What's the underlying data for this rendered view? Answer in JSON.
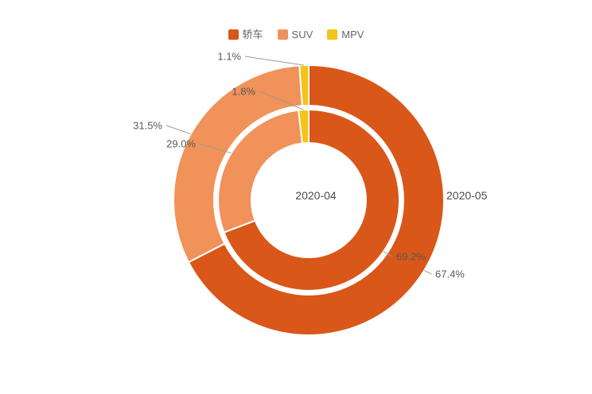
{
  "chart_data": {
    "type": "pie",
    "subtype": "nested-donut",
    "legend": [
      "轿车",
      "SUV",
      "MPV"
    ],
    "legend_position": "top",
    "colors": [
      "#D95718",
      "#F0925A",
      "#F4C416"
    ],
    "background": "#FFFFFF",
    "unit": "%",
    "series": [
      {
        "name": "2020-04",
        "ring": "inner",
        "values": [
          69.2,
          29.0,
          1.8
        ],
        "labels": [
          "69.2%",
          "29.0%",
          "1.8%"
        ]
      },
      {
        "name": "2020-05",
        "ring": "outer",
        "values": [
          67.4,
          31.5,
          1.1
        ],
        "labels": [
          "67.4%",
          "31.5%",
          "1.1%"
        ]
      }
    ]
  }
}
